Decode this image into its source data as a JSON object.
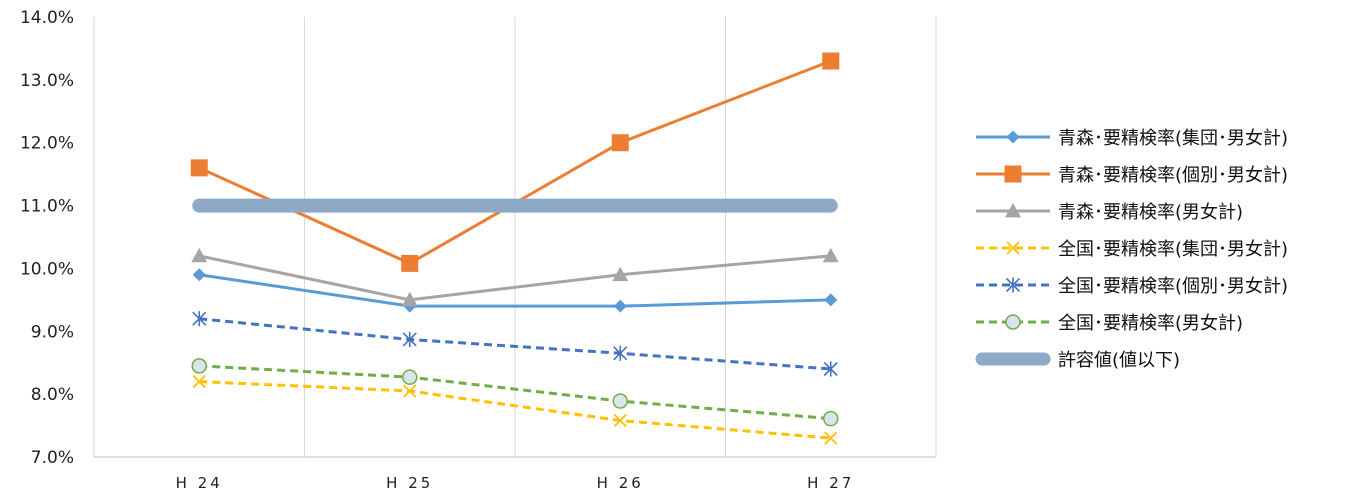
{
  "chart_data": {
    "type": "line",
    "categories": [
      "H24",
      "H25",
      "H26",
      "H27"
    ],
    "ylim": [
      0.07,
      0.14
    ],
    "y_ticks": [
      {
        "value": 0.14,
        "label": "14.0%"
      },
      {
        "value": 0.13,
        "label": "13.0%"
      },
      {
        "value": 0.12,
        "label": "12.0%"
      },
      {
        "value": 0.11,
        "label": "11.0%"
      },
      {
        "value": 0.1,
        "label": "10.0%"
      },
      {
        "value": 0.09,
        "label": "9.0%"
      },
      {
        "value": 0.08,
        "label": "8.0%"
      },
      {
        "value": 0.07,
        "label": "7.0%"
      }
    ],
    "x_tick_labels": [
      "H 24",
      "H 25",
      "H 26",
      "H 27"
    ],
    "grid": "vertical",
    "legend_position": "right",
    "series": [
      {
        "name": "青森･要精検率(集団･男女計)",
        "values": [
          0.099,
          0.094,
          0.094,
          0.095
        ],
        "color": "#5B9BD5",
        "marker": "diamond",
        "dash": "solid"
      },
      {
        "name": "青森･要精検率(個別･男女計)",
        "values": [
          0.116,
          0.1008,
          0.12,
          0.133
        ],
        "color": "#ED7D31",
        "marker": "square",
        "dash": "solid"
      },
      {
        "name": "青森･要精検率(男女計)",
        "values": [
          0.102,
          0.095,
          0.099,
          0.102
        ],
        "color": "#A5A5A5",
        "marker": "triangle",
        "dash": "solid"
      },
      {
        "name": "全国･要精検率(集団･男女計)",
        "values": [
          0.082,
          0.0805,
          0.0758,
          0.073
        ],
        "color": "#FFC000",
        "marker": "x",
        "dash": "dashed"
      },
      {
        "name": "全国･要精検率(個別･男女計)",
        "values": [
          0.092,
          0.0887,
          0.0865,
          0.084
        ],
        "color": "#4472C4",
        "marker": "asterisk",
        "dash": "dashed"
      },
      {
        "name": "全国･要精検率(男女計)",
        "values": [
          0.0845,
          0.0827,
          0.0789,
          0.0761
        ],
        "color": "#70AD47",
        "marker": "circle",
        "dash": "dashed"
      },
      {
        "name": "許容値(値以下)",
        "values": [
          0.11,
          0.11,
          0.11,
          0.11
        ],
        "color": "#8EA9C8",
        "marker": "none",
        "dash": "thick"
      }
    ]
  }
}
